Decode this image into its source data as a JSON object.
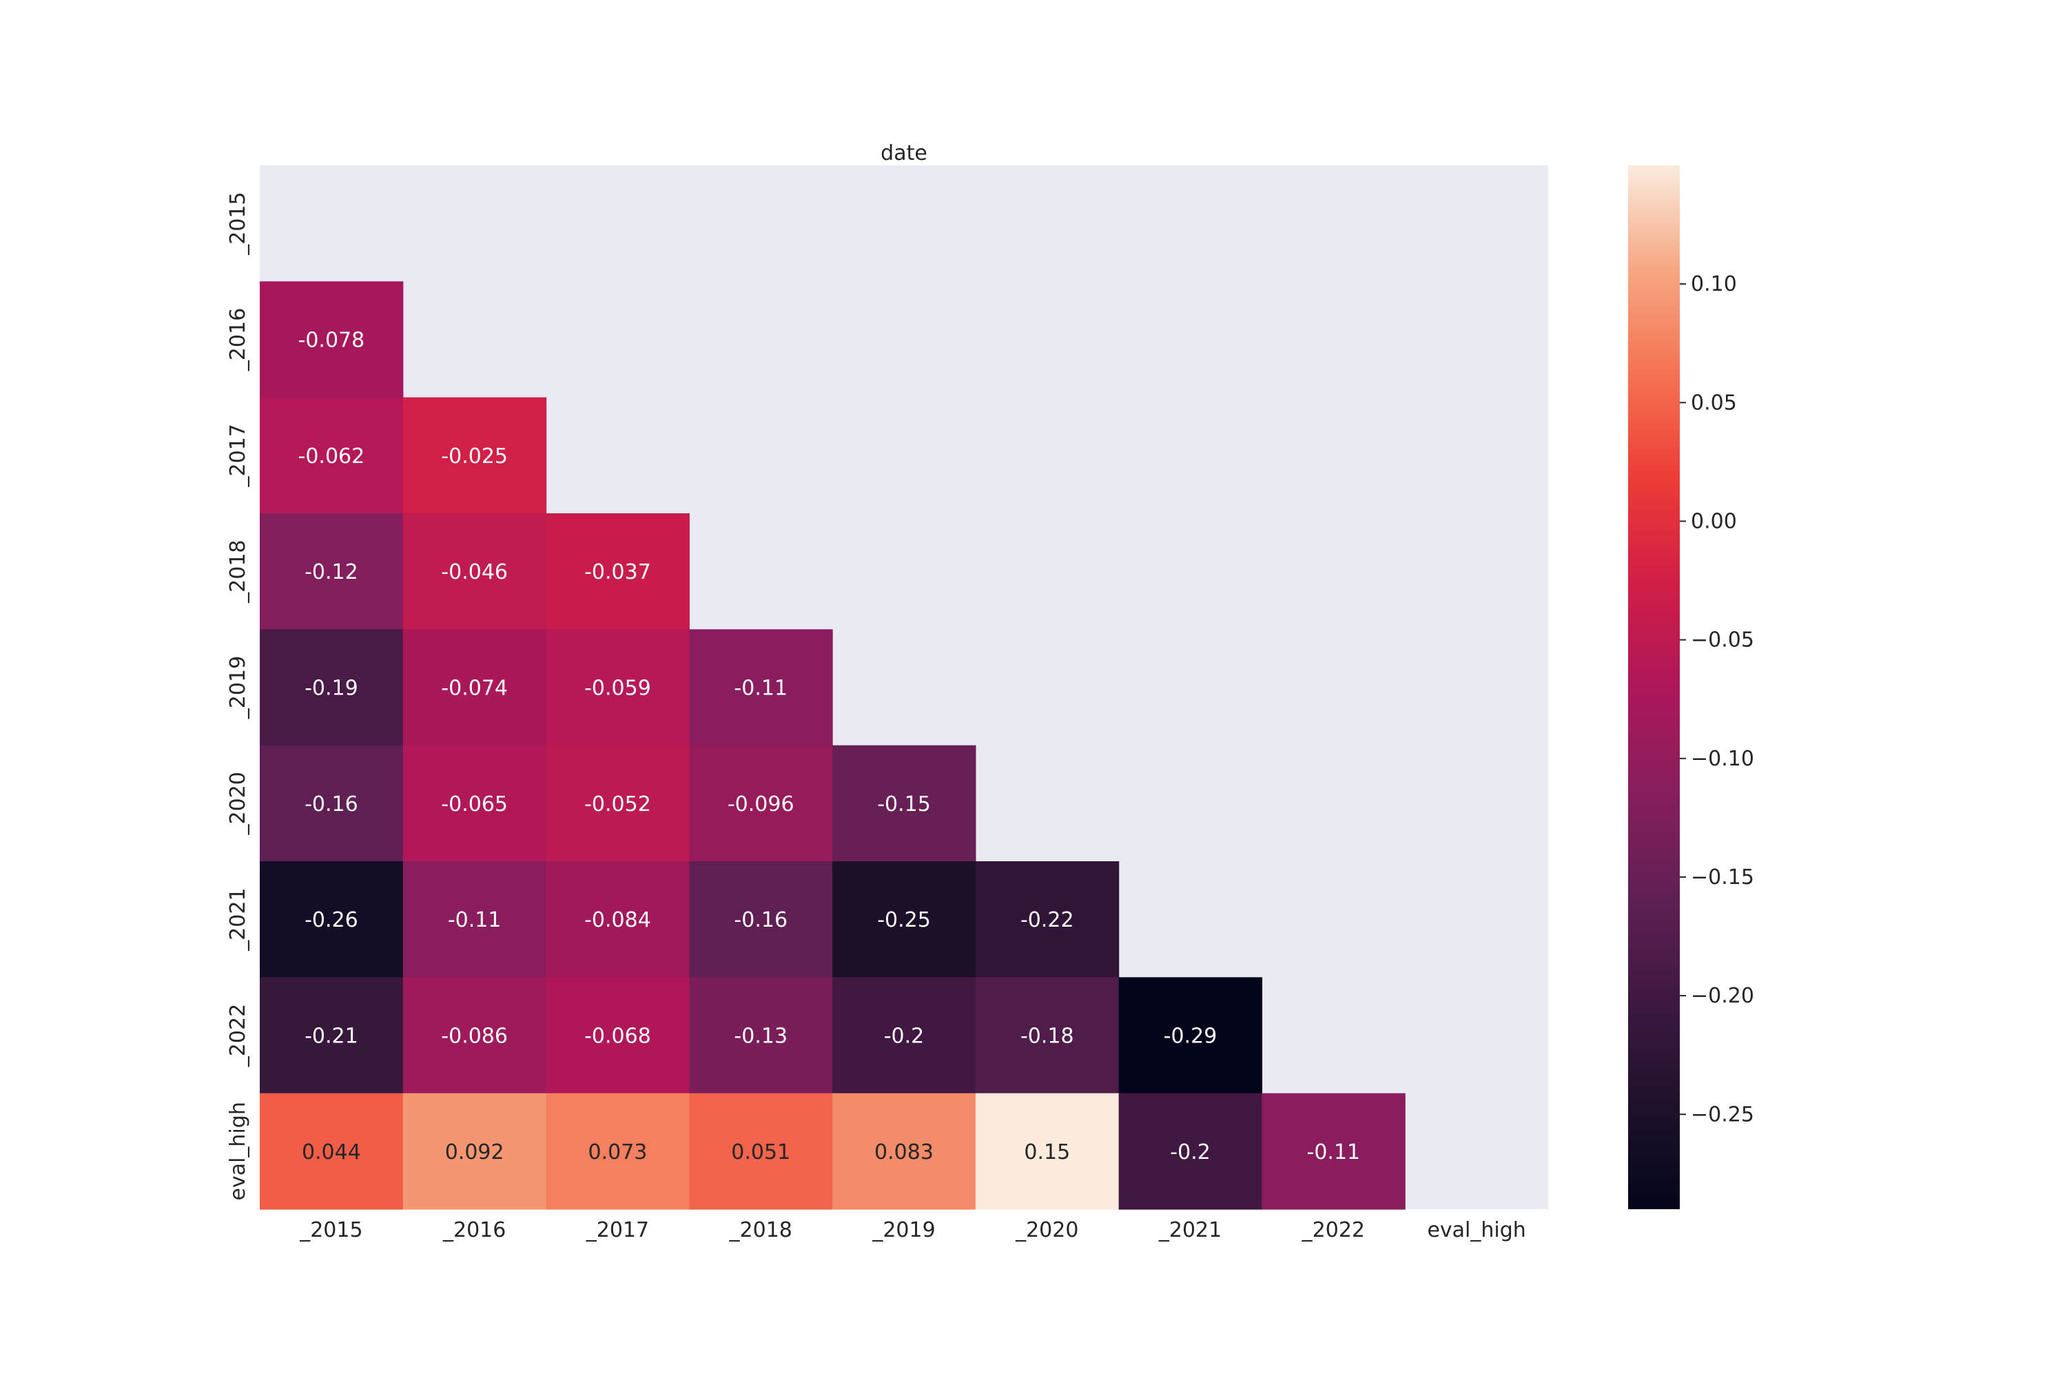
{
  "chart_data": {
    "type": "heatmap",
    "title": "date",
    "row_labels": [
      "_2015",
      "_2016",
      "_2017",
      "_2018",
      "_2019",
      "_2020",
      "_2021",
      "_2022",
      "eval_high"
    ],
    "col_labels": [
      "_2015",
      "_2016",
      "_2017",
      "_2018",
      "_2019",
      "_2020",
      "_2021",
      "_2022",
      "eval_high"
    ],
    "mask": "upper-triangle-including-diagonal",
    "values": [
      [
        null,
        null,
        null,
        null,
        null,
        null,
        null,
        null,
        null
      ],
      [
        -0.078,
        null,
        null,
        null,
        null,
        null,
        null,
        null,
        null
      ],
      [
        -0.062,
        -0.025,
        null,
        null,
        null,
        null,
        null,
        null,
        null
      ],
      [
        -0.12,
        -0.046,
        -0.037,
        null,
        null,
        null,
        null,
        null,
        null
      ],
      [
        -0.19,
        -0.074,
        -0.059,
        -0.11,
        null,
        null,
        null,
        null,
        null
      ],
      [
        -0.16,
        -0.065,
        -0.052,
        -0.096,
        -0.15,
        null,
        null,
        null,
        null
      ],
      [
        -0.26,
        -0.11,
        -0.084,
        -0.16,
        -0.25,
        -0.22,
        null,
        null,
        null
      ],
      [
        -0.21,
        -0.086,
        -0.068,
        -0.13,
        -0.2,
        -0.18,
        -0.29,
        null,
        null
      ],
      [
        0.044,
        0.092,
        0.073,
        0.051,
        0.083,
        0.15,
        -0.2,
        -0.11,
        null
      ]
    ],
    "value_labels": [
      [
        "",
        "",
        "",
        "",
        "",
        "",
        "",
        "",
        ""
      ],
      [
        "-0.078",
        "",
        "",
        "",
        "",
        "",
        "",
        "",
        ""
      ],
      [
        "-0.062",
        "-0.025",
        "",
        "",
        "",
        "",
        "",
        "",
        ""
      ],
      [
        "-0.12",
        "-0.046",
        "-0.037",
        "",
        "",
        "",
        "",
        "",
        ""
      ],
      [
        "-0.19",
        "-0.074",
        "-0.059",
        "-0.11",
        "",
        "",
        "",
        "",
        ""
      ],
      [
        "-0.16",
        "-0.065",
        "-0.052",
        "-0.096",
        "-0.15",
        "",
        "",
        "",
        ""
      ],
      [
        "-0.26",
        "-0.11",
        "-0.084",
        "-0.16",
        "-0.25",
        "-0.22",
        "",
        "",
        ""
      ],
      [
        "-0.21",
        "-0.086",
        "-0.068",
        "-0.13",
        "-0.2",
        "-0.18",
        "-0.29",
        "",
        ""
      ],
      [
        "0.044",
        "0.092",
        "0.073",
        "0.051",
        "0.083",
        "0.15",
        "-0.2",
        "-0.11",
        ""
      ]
    ],
    "colorbar": {
      "vmin": -0.29,
      "vmax": 0.15,
      "ticks": [
        0.1,
        0.05,
        0.0,
        -0.05,
        -0.1,
        -0.15,
        -0.2,
        -0.25
      ],
      "tick_labels": [
        "0.10",
        "0.05",
        "0.00",
        "−0.05",
        "−0.10",
        "−0.15",
        "−0.20",
        "−0.25"
      ]
    },
    "colormap": "rocket",
    "colors": {
      "background": "#eaeaf2",
      "text_dark": "#262626",
      "text_light": "#ffffff"
    }
  }
}
